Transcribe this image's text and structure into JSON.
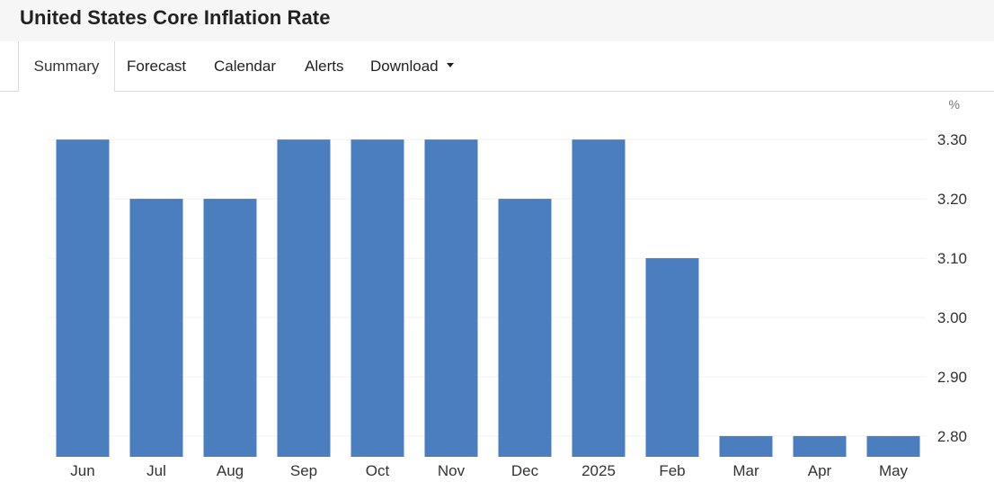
{
  "header": {
    "title": "United States Core Inflation Rate"
  },
  "tabs": [
    {
      "label": "Summary",
      "active": true
    },
    {
      "label": "Forecast"
    },
    {
      "label": "Calendar"
    },
    {
      "label": "Alerts"
    },
    {
      "label": "Download",
      "icon": "caret-down-icon"
    }
  ],
  "colors": {
    "bar": "#4a7ebf",
    "grid": "#f0f0f0",
    "tick_text": "#333333",
    "unit_text": "#777777"
  },
  "chart_data": {
    "type": "bar",
    "title": "",
    "xlabel": "",
    "ylabel": "",
    "unit": "%",
    "categories": [
      "Jun",
      "Jul",
      "Aug",
      "Sep",
      "Oct",
      "Nov",
      "Dec",
      "2025",
      "Feb",
      "Mar",
      "Apr",
      "May"
    ],
    "values": [
      3.3,
      3.2,
      3.2,
      3.3,
      3.3,
      3.3,
      3.2,
      3.3,
      3.1,
      2.8,
      2.8,
      2.8
    ],
    "ylim": [
      2.765,
      3.32
    ],
    "yticks": [
      "3.30",
      "3.20",
      "3.10",
      "3.00",
      "2.90",
      "2.80"
    ],
    "y_axis_position": "right",
    "grid": true,
    "legend": "none"
  }
}
